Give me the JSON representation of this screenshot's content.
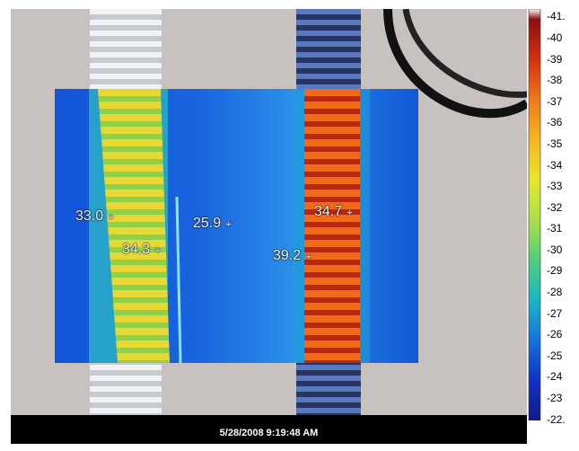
{
  "timestamp": "5/28/2008 9:19:48 AM",
  "temperature_markers": [
    {
      "value": "33.0"
    },
    {
      "value": "34.3"
    },
    {
      "value": "25.9"
    },
    {
      "value": "34.7"
    },
    {
      "value": "39.2"
    }
  ],
  "scale": {
    "max_label": "41.",
    "min_label": "22.",
    "labels": [
      "40",
      "39",
      "38",
      "37",
      "36",
      "35",
      "34",
      "33",
      "32",
      "31",
      "30",
      "29",
      "28",
      "27",
      "26",
      "25",
      "24",
      "23"
    ],
    "colors": [
      "#ffffff",
      "#8b0f0f",
      "#d73010",
      "#f07818",
      "#f6b520",
      "#e6e82a",
      "#a9e047",
      "#4fcf7c",
      "#19b6c8",
      "#1673e0",
      "#0f32c8",
      "#111a8a"
    ]
  }
}
